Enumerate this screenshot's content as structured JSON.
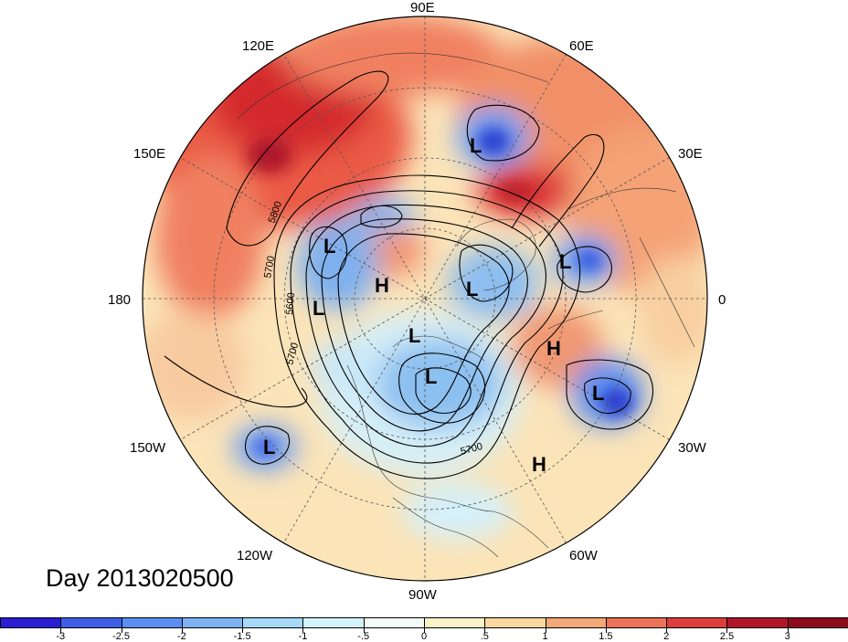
{
  "lon_labels": {
    "top": "90E",
    "lon_60e": "60E",
    "lon_30e": "30E",
    "right": "0",
    "lon_30w": "30W",
    "lon_60w": "60W",
    "bottom": "90W",
    "lon_120w": "120W",
    "lon_150w": "150W",
    "left": "180",
    "lon_150e": "150E",
    "lon_120e": "120E"
  },
  "contour_labels": [
    "5800",
    "5700",
    "5600",
    "5700",
    "5700"
  ],
  "pressure_systems": [
    "L",
    "L",
    "L",
    "L",
    "L",
    "L",
    "L",
    "L",
    "H",
    "H",
    "H"
  ],
  "day_label": "Day 2013020500",
  "colorbar": {
    "ticks": [
      "-3",
      "-2.5",
      "-2",
      "-1.5",
      "-1",
      "-.5",
      "0",
      ".5",
      "1",
      "1.5",
      "2",
      "2.5",
      "3"
    ],
    "colors": [
      "#2a1fd2",
      "#3c5fe6",
      "#5a8ef0",
      "#7fb2f4",
      "#a7d8f8",
      "#d4f2fa",
      "#f2fbf6",
      "#fdf3c8",
      "#f9d79e",
      "#f3a878",
      "#ec7258",
      "#dd3d3d",
      "#b11529",
      "#8c0c1c"
    ]
  },
  "colors": {
    "ocean_base": "#fce9c4",
    "warm_anomaly": "#e8503e",
    "cold_anomaly": "#4a7fe2"
  }
}
